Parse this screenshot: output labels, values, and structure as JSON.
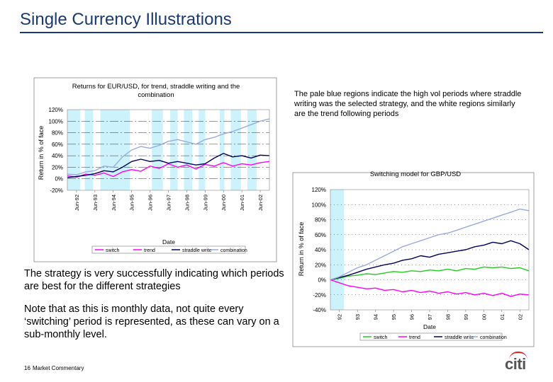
{
  "slide": {
    "title": "Single Currency Illustrations",
    "note": "The pale blue regions indicate the high vol periods where straddle writing was the selected strategy, and the white regions similarly are the trend following periods",
    "body1": "The strategy is very successfully indicating which periods are best for the different strategies",
    "body2": "Note that as this is monthly data, not quite every ‘switching’ period is represented, as these can vary on a sub-monthly level.",
    "page_number": "16",
    "footer_text": "Market Commentary",
    "logo": "citi"
  },
  "colors": {
    "title": "#1a3a72",
    "highlight": "#ccf3fb",
    "switch": "#ff00ff",
    "trend": "#ff00ff",
    "straddle": "#000060",
    "combination": "#99aadd",
    "gbp_switch": "#22cc22",
    "logo_arc": "#dd2222"
  },
  "chart_data": [
    {
      "type": "line",
      "title": "Returns for EUR/USD, for trend, straddle writing and the combination",
      "xlabel": "Date",
      "ylabel": "Return in % of face",
      "ylim": [
        -20,
        120
      ],
      "yticks": [
        "120%",
        "100%",
        "80%",
        "60%",
        "40%",
        "20%",
        "0%",
        "-20%"
      ],
      "xticks": [
        "Jun-92",
        "Jun-93",
        "Jun-94",
        "Jun-95",
        "Jun-96",
        "Jun-97",
        "Jun-98",
        "Jun-99",
        "Jun-00",
        "Jun-01",
        "Jun-02"
      ],
      "xlim": [
        1992.0,
        2003.0
      ],
      "highlight_periods": [
        [
          1992.0,
          1992.7
        ],
        [
          1992.95,
          1993.4
        ],
        [
          1993.8,
          1995.4
        ],
        [
          1996.6,
          1997.2
        ],
        [
          1997.6,
          1998.0
        ],
        [
          1998.35,
          1998.8
        ],
        [
          1999.15,
          1999.5
        ],
        [
          2000.3,
          2000.55
        ],
        [
          2000.9,
          2001.45
        ],
        [
          2001.8,
          2002.3
        ]
      ],
      "legend": [
        "switch",
        "trend",
        "straddle write",
        "combination"
      ],
      "legend_position": "bottom",
      "series": [
        {
          "name": "trend",
          "x": [
            1992.0,
            1992.5,
            1993.0,
            1993.5,
            1994.0,
            1994.5,
            1995.0,
            1995.5,
            1996.0,
            1996.5,
            1997.0,
            1997.5,
            1998.0,
            1998.5,
            1999.0,
            1999.5,
            2000.0,
            2000.5,
            2001.0,
            2001.5,
            2002.0,
            2002.5,
            2003.0
          ],
          "y": [
            5,
            3,
            8,
            6,
            10,
            4,
            12,
            16,
            13,
            22,
            18,
            26,
            20,
            24,
            17,
            25,
            22,
            28,
            22,
            26,
            24,
            28,
            30
          ]
        },
        {
          "name": "straddle write",
          "x": [
            1992.0,
            1992.5,
            1993.0,
            1993.5,
            1994.0,
            1994.5,
            1995.0,
            1995.5,
            1996.0,
            1996.5,
            1997.0,
            1997.5,
            1998.0,
            1998.5,
            1999.0,
            1999.5,
            2000.0,
            2000.5,
            2001.0,
            2001.5,
            2002.0,
            2002.5,
            2003.0
          ],
          "y": [
            2,
            4,
            6,
            9,
            14,
            12,
            20,
            30,
            34,
            30,
            32,
            27,
            30,
            27,
            24,
            26,
            36,
            44,
            38,
            40,
            36,
            41,
            40
          ]
        },
        {
          "name": "combination",
          "x": [
            1992.0,
            1992.5,
            1993.0,
            1993.5,
            1994.0,
            1994.5,
            1995.0,
            1995.5,
            1996.0,
            1996.5,
            1997.0,
            1997.5,
            1998.0,
            1998.5,
            1999.0,
            1999.5,
            2000.0,
            2000.5,
            2001.0,
            2001.5,
            2002.0,
            2002.5,
            2003.0
          ],
          "y": [
            8,
            7,
            12,
            14,
            22,
            20,
            38,
            50,
            56,
            53,
            58,
            65,
            68,
            64,
            60,
            68,
            72,
            78,
            82,
            88,
            94,
            100,
            104
          ]
        }
      ]
    },
    {
      "type": "line",
      "title": "Switching model for GBP/USD",
      "xlabel": "Date",
      "ylabel": "Return in % of face",
      "ylim": [
        -40,
        120
      ],
      "yticks": [
        "120%",
        "100%",
        "80%",
        "60%",
        "40%",
        "20%",
        "0%",
        "-20%",
        "-40%"
      ],
      "xticks": [
        "92",
        "93",
        "94",
        "95",
        "96",
        "97",
        "98",
        "99",
        "00",
        "01",
        "02"
      ],
      "xlim": [
        1992.0,
        2003.0
      ],
      "highlight_periods": [
        [
          1992.0,
          1992.75
        ]
      ],
      "legend": [
        "switch",
        "trend",
        "straddle write",
        "combination"
      ],
      "legend_position": "bottom",
      "series": [
        {
          "name": "switch",
          "x": [
            1992.0,
            1992.5,
            1993.0,
            1993.5,
            1994.0,
            1994.5,
            1995.0,
            1995.5,
            1996.0,
            1996.5,
            1997.0,
            1997.5,
            1998.0,
            1998.5,
            1999.0,
            1999.5,
            2000.0,
            2000.5,
            2001.0,
            2001.5,
            2002.0,
            2002.5,
            2003.0
          ],
          "y": [
            0,
            2,
            5,
            6,
            8,
            7,
            9,
            11,
            10,
            12,
            11,
            13,
            12,
            14,
            12,
            15,
            14,
            17,
            16,
            17,
            15,
            16,
            12
          ]
        },
        {
          "name": "trend",
          "x": [
            1992.0,
            1992.5,
            1993.0,
            1993.5,
            1994.0,
            1994.5,
            1995.0,
            1995.5,
            1996.0,
            1996.5,
            1997.0,
            1997.5,
            1998.0,
            1998.5,
            1999.0,
            1999.5,
            2000.0,
            2000.5,
            2001.0,
            2001.5,
            2002.0,
            2002.5,
            2003.0
          ],
          "y": [
            0,
            -4,
            -8,
            -10,
            -12,
            -11,
            -14,
            -13,
            -16,
            -14,
            -17,
            -15,
            -18,
            -16,
            -19,
            -17,
            -20,
            -18,
            -21,
            -18,
            -22,
            -19,
            -20
          ]
        },
        {
          "name": "straddle write",
          "x": [
            1992.0,
            1992.5,
            1993.0,
            1993.5,
            1994.0,
            1994.5,
            1995.0,
            1995.5,
            1996.0,
            1996.5,
            1997.0,
            1997.5,
            1998.0,
            1998.5,
            1999.0,
            1999.5,
            2000.0,
            2000.5,
            2001.0,
            2001.5,
            2002.0,
            2002.5,
            2003.0
          ],
          "y": [
            0,
            3,
            6,
            10,
            14,
            17,
            20,
            22,
            26,
            28,
            32,
            30,
            34,
            36,
            38,
            40,
            44,
            46,
            50,
            48,
            52,
            48,
            40
          ]
        },
        {
          "name": "combination",
          "x": [
            1992.0,
            1992.5,
            1993.0,
            1993.5,
            1994.0,
            1994.5,
            1995.0,
            1995.5,
            1996.0,
            1996.5,
            1997.0,
            1997.5,
            1998.0,
            1998.5,
            1999.0,
            1999.5,
            2000.0,
            2000.5,
            2001.0,
            2001.5,
            2002.0,
            2002.5,
            2003.0
          ],
          "y": [
            0,
            4,
            10,
            16,
            20,
            26,
            32,
            38,
            44,
            48,
            52,
            56,
            60,
            62,
            66,
            70,
            74,
            78,
            82,
            86,
            90,
            94,
            92
          ]
        }
      ]
    }
  ]
}
